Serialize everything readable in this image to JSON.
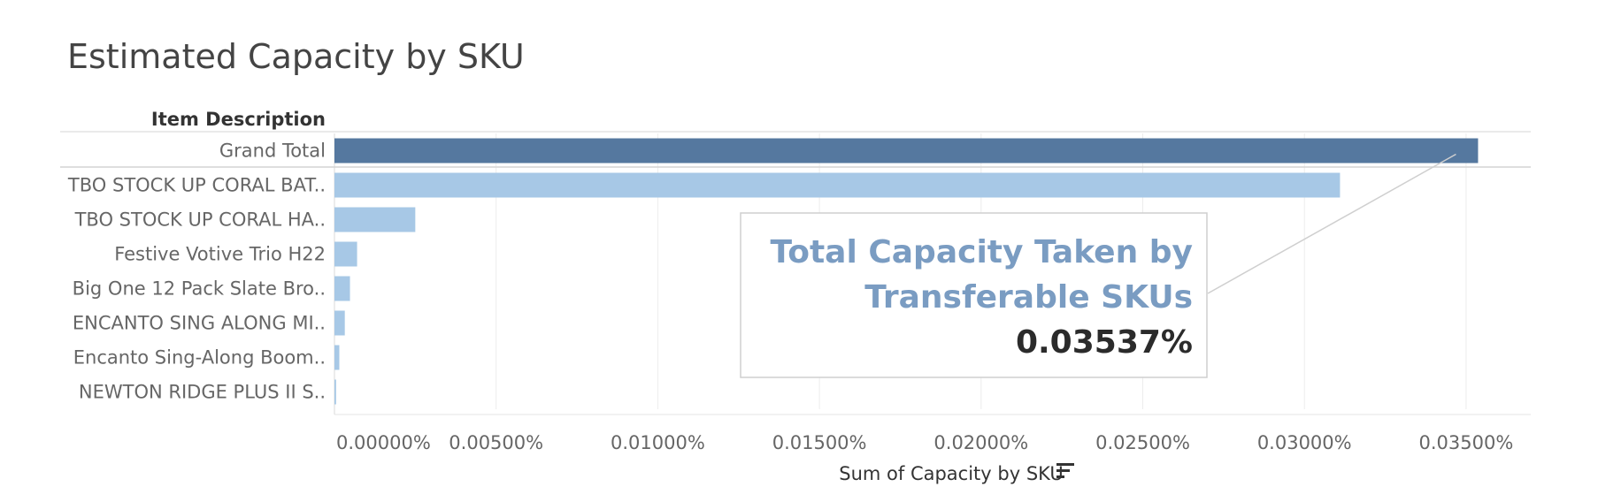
{
  "title": "Estimated Capacity by SKU",
  "chart_data": {
    "type": "bar",
    "orientation": "horizontal",
    "row_header": "Item Description",
    "categories": [
      "Grand Total",
      "TBO STOCK UP CORAL BAT..",
      "TBO STOCK UP CORAL HA..",
      "Festive Votive Trio H22",
      "Big One 12 Pack Slate Bro..",
      "ENCANTO SING ALONG MI..",
      "Encanto Sing-Along Boom..",
      "NEWTON RIDGE PLUS II S.."
    ],
    "values": [
      0.03537,
      0.0311,
      0.0025,
      0.0007,
      0.00048,
      0.00032,
      0.00015,
      5e-05
    ],
    "xlabel": "Sum of Capacity by SKU",
    "xlim": [
      0,
      0.037
    ],
    "ticks": [
      0,
      0.005,
      0.01,
      0.015,
      0.02,
      0.025,
      0.03,
      0.035
    ],
    "tick_labels": [
      "0.00000%",
      "0.00500%",
      "0.01000%",
      "0.01500%",
      "0.02000%",
      "0.02500%",
      "0.03000%",
      "0.03500%"
    ],
    "grid": true,
    "colors": {
      "grand_total": "#55789f",
      "bars": "#a7c8e6"
    },
    "annotation": {
      "line1": "Total Capacity Taken by",
      "line2": "Transferable SKUs",
      "value": "0.03537%"
    }
  }
}
